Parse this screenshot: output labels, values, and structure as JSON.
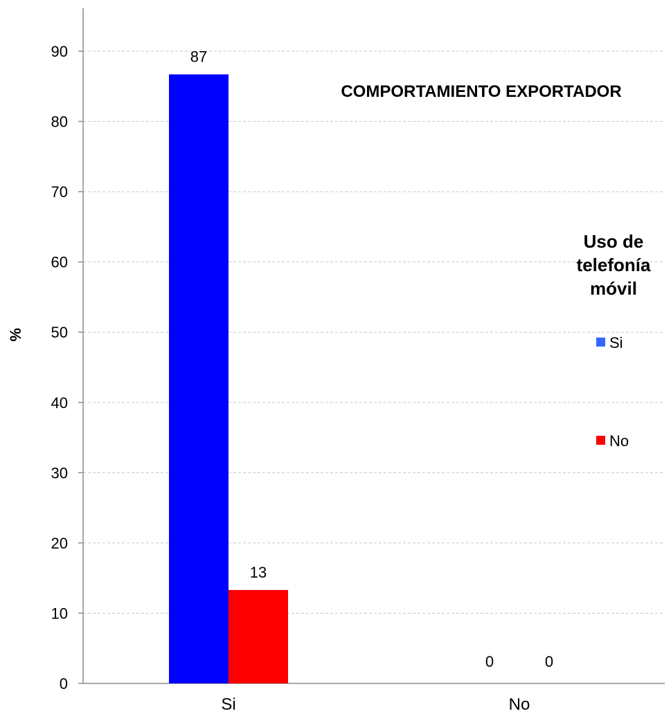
{
  "chart_data": {
    "type": "bar",
    "title": "COMPORTAMIENTO EXPORTADOR",
    "ylabel": "%",
    "xlabel": "",
    "ylim": [
      0,
      90
    ],
    "yticks": [
      0,
      10,
      20,
      30,
      40,
      50,
      60,
      70,
      80,
      90
    ],
    "grid": true,
    "categories": [
      "Si",
      "No"
    ],
    "legend": {
      "title_lines": [
        "Uso de",
        "telefonía",
        "móvil"
      ],
      "placement": "right"
    },
    "series": [
      {
        "name": "Si",
        "color": "#0000ff",
        "legend_color": "#3366ff",
        "values": [
          86.7,
          0
        ],
        "labels": [
          "87",
          "0"
        ]
      },
      {
        "name": "No",
        "color": "#ff0000",
        "legend_color": "#ff0000",
        "values": [
          13.3,
          0
        ],
        "labels": [
          "13",
          "0"
        ]
      }
    ]
  }
}
